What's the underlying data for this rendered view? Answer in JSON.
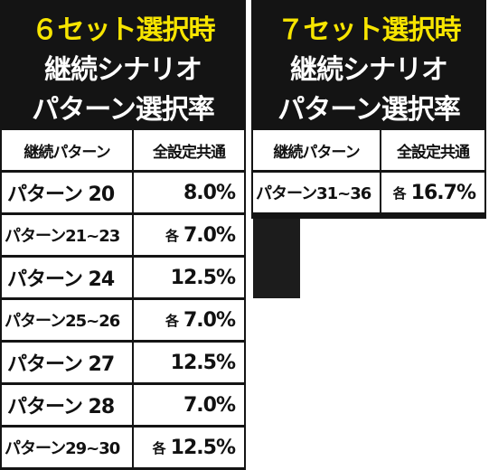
{
  "tables": [
    {
      "title": "６セット選択時",
      "subtitle_lines": [
        "継続シナリオ",
        "パターン選択率"
      ],
      "columns": [
        "継続パターン",
        "全設定共通"
      ],
      "rows": [
        {
          "pattern": "パターン 20",
          "rate": "8.0%"
        },
        {
          "pattern": "パターン21~23",
          "each": "各",
          "rate": "7.0%"
        },
        {
          "pattern": "パターン 24",
          "rate": "12.5%"
        },
        {
          "pattern": "パターン25~26",
          "each": "各",
          "rate": "7.0%"
        },
        {
          "pattern": "パターン 27",
          "rate": "12.5%"
        },
        {
          "pattern": "パターン 28",
          "rate": "7.0%"
        },
        {
          "pattern": "パターン29~30",
          "each": "各",
          "rate": "12.5%"
        }
      ]
    },
    {
      "title": "７セット選択時",
      "subtitle_lines": [
        "継続シナリオ",
        "パターン選択率"
      ],
      "columns": [
        "継続パターン",
        "全設定共通"
      ],
      "rows": [
        {
          "pattern": "パターン31~36",
          "each": "各",
          "rate": "16.7%"
        }
      ]
    }
  ]
}
